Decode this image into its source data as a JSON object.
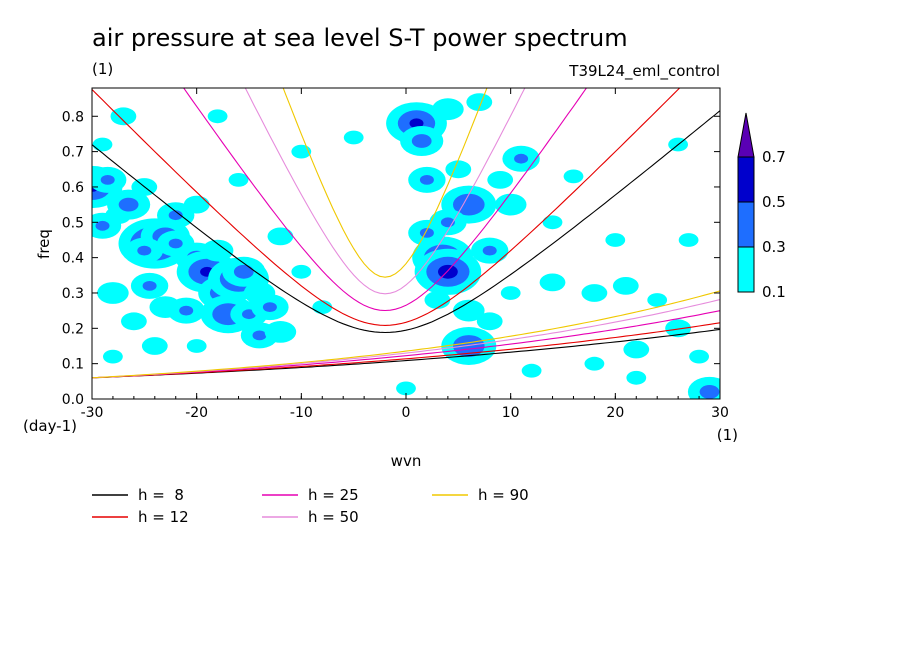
{
  "chart_data": {
    "type": "heatmap",
    "title": "air pressure at sea level S-T power spectrum",
    "unit_label": "(1)",
    "run_label": "T39L24_eml_control",
    "xlabel": "wvn",
    "x_unit": "(1)",
    "ylabel": "freq",
    "y_unit": "(day-1)",
    "xlim": [
      -30,
      30
    ],
    "ylim": [
      0.0,
      0.88
    ],
    "x_ticks": [
      "-30",
      "-20",
      "-10",
      "0",
      "10",
      "20",
      "30"
    ],
    "y_ticks": [
      "0.0",
      "0.1",
      "0.2",
      "0.3",
      "0.4",
      "0.5",
      "0.6",
      "0.7",
      "0.8"
    ],
    "colorbar": {
      "labels": [
        "0.1",
        "0.3",
        "0.5",
        "0.7"
      ],
      "levels": [
        0.1,
        0.3,
        0.5,
        0.7
      ],
      "colors": [
        "#00ffff",
        "#1e6eff",
        "#0000cc",
        "#5a00b4"
      ]
    },
    "series": [
      {
        "name": "h =  8",
        "h": 8,
        "color": "#000000"
      },
      {
        "name": "h = 12",
        "h": 12,
        "color": "#e60000"
      },
      {
        "name": "h = 25",
        "h": 25,
        "color": "#e600b4"
      },
      {
        "name": "h = 50",
        "h": 50,
        "color": "#e68cdc"
      },
      {
        "name": "h = 90",
        "h": 90,
        "color": "#f0c800"
      }
    ],
    "blobs": [
      {
        "x": -30,
        "y": 0.6,
        "v": 0.5
      },
      {
        "x": -28.5,
        "y": 0.62,
        "v": 0.3
      },
      {
        "x": -29,
        "y": 0.49,
        "v": 0.3
      },
      {
        "x": -27.5,
        "y": 0.52,
        "v": 0.2
      },
      {
        "x": -26.5,
        "y": 0.55,
        "v": 0.35
      },
      {
        "x": -27,
        "y": 0.8,
        "v": 0.2
      },
      {
        "x": -29,
        "y": 0.72,
        "v": 0.15
      },
      {
        "x": -24,
        "y": 0.44,
        "v": 0.6
      },
      {
        "x": -23,
        "y": 0.46,
        "v": 0.4
      },
      {
        "x": -25,
        "y": 0.42,
        "v": 0.3
      },
      {
        "x": -22,
        "y": 0.44,
        "v": 0.3
      },
      {
        "x": -24.5,
        "y": 0.32,
        "v": 0.3
      },
      {
        "x": -23,
        "y": 0.26,
        "v": 0.25
      },
      {
        "x": -21,
        "y": 0.25,
        "v": 0.3
      },
      {
        "x": -20,
        "y": 0.4,
        "v": 0.35
      },
      {
        "x": -19,
        "y": 0.36,
        "v": 0.5
      },
      {
        "x": -18,
        "y": 0.42,
        "v": 0.25
      },
      {
        "x": -17.5,
        "y": 0.3,
        "v": 0.4
      },
      {
        "x": -16,
        "y": 0.34,
        "v": 0.5
      },
      {
        "x": -17,
        "y": 0.24,
        "v": 0.45
      },
      {
        "x": -15,
        "y": 0.24,
        "v": 0.3
      },
      {
        "x": -15.5,
        "y": 0.36,
        "v": 0.35
      },
      {
        "x": -14,
        "y": 0.3,
        "v": 0.25
      },
      {
        "x": -13,
        "y": 0.26,
        "v": 0.3
      },
      {
        "x": -14,
        "y": 0.18,
        "v": 0.3
      },
      {
        "x": -12,
        "y": 0.19,
        "v": 0.25
      },
      {
        "x": -22,
        "y": 0.52,
        "v": 0.3
      },
      {
        "x": -20,
        "y": 0.55,
        "v": 0.2
      },
      {
        "x": -25,
        "y": 0.6,
        "v": 0.2
      },
      {
        "x": -28,
        "y": 0.3,
        "v": 0.25
      },
      {
        "x": -26,
        "y": 0.22,
        "v": 0.2
      },
      {
        "x": -28,
        "y": 0.12,
        "v": 0.15
      },
      {
        "x": -24,
        "y": 0.15,
        "v": 0.2
      },
      {
        "x": -20,
        "y": 0.15,
        "v": 0.15
      },
      {
        "x": -18,
        "y": 0.8,
        "v": 0.15
      },
      {
        "x": -16,
        "y": 0.62,
        "v": 0.15
      },
      {
        "x": -12,
        "y": 0.46,
        "v": 0.2
      },
      {
        "x": -10,
        "y": 0.36,
        "v": 0.15
      },
      {
        "x": -8,
        "y": 0.26,
        "v": 0.15
      },
      {
        "x": -5,
        "y": 0.74,
        "v": 0.15
      },
      {
        "x": -10,
        "y": 0.7,
        "v": 0.15
      },
      {
        "x": 1,
        "y": 0.78,
        "v": 0.5
      },
      {
        "x": 1.5,
        "y": 0.73,
        "v": 0.35
      },
      {
        "x": 4,
        "y": 0.82,
        "v": 0.25
      },
      {
        "x": 7,
        "y": 0.84,
        "v": 0.2
      },
      {
        "x": 2,
        "y": 0.62,
        "v": 0.3
      },
      {
        "x": 5,
        "y": 0.65,
        "v": 0.2
      },
      {
        "x": 6,
        "y": 0.55,
        "v": 0.45
      },
      {
        "x": 4,
        "y": 0.5,
        "v": 0.3
      },
      {
        "x": 2,
        "y": 0.47,
        "v": 0.3
      },
      {
        "x": 3.5,
        "y": 0.4,
        "v": 0.5
      },
      {
        "x": 4,
        "y": 0.36,
        "v": 0.55
      },
      {
        "x": 8,
        "y": 0.42,
        "v": 0.3
      },
      {
        "x": 10,
        "y": 0.55,
        "v": 0.25
      },
      {
        "x": 11,
        "y": 0.68,
        "v": 0.3
      },
      {
        "x": 9,
        "y": 0.62,
        "v": 0.2
      },
      {
        "x": 6,
        "y": 0.25,
        "v": 0.25
      },
      {
        "x": 8,
        "y": 0.22,
        "v": 0.2
      },
      {
        "x": 6,
        "y": 0.15,
        "v": 0.45
      },
      {
        "x": 3,
        "y": 0.28,
        "v": 0.2
      },
      {
        "x": 10,
        "y": 0.3,
        "v": 0.15
      },
      {
        "x": 14,
        "y": 0.33,
        "v": 0.2
      },
      {
        "x": 18,
        "y": 0.3,
        "v": 0.2
      },
      {
        "x": 21,
        "y": 0.32,
        "v": 0.2
      },
      {
        "x": 24,
        "y": 0.28,
        "v": 0.15
      },
      {
        "x": 26,
        "y": 0.2,
        "v": 0.2
      },
      {
        "x": 22,
        "y": 0.14,
        "v": 0.2
      },
      {
        "x": 18,
        "y": 0.1,
        "v": 0.15
      },
      {
        "x": 28,
        "y": 0.12,
        "v": 0.15
      },
      {
        "x": 29,
        "y": 0.02,
        "v": 0.35
      },
      {
        "x": 20,
        "y": 0.45,
        "v": 0.15
      },
      {
        "x": 14,
        "y": 0.5,
        "v": 0.15
      },
      {
        "x": 27,
        "y": 0.45,
        "v": 0.15
      },
      {
        "x": 16,
        "y": 0.63,
        "v": 0.15
      },
      {
        "x": 26,
        "y": 0.72,
        "v": 0.15
      },
      {
        "x": 0,
        "y": 0.03,
        "v": 0.15
      },
      {
        "x": 12,
        "y": 0.08,
        "v": 0.15
      },
      {
        "x": 22,
        "y": 0.06,
        "v": 0.15
      }
    ]
  }
}
